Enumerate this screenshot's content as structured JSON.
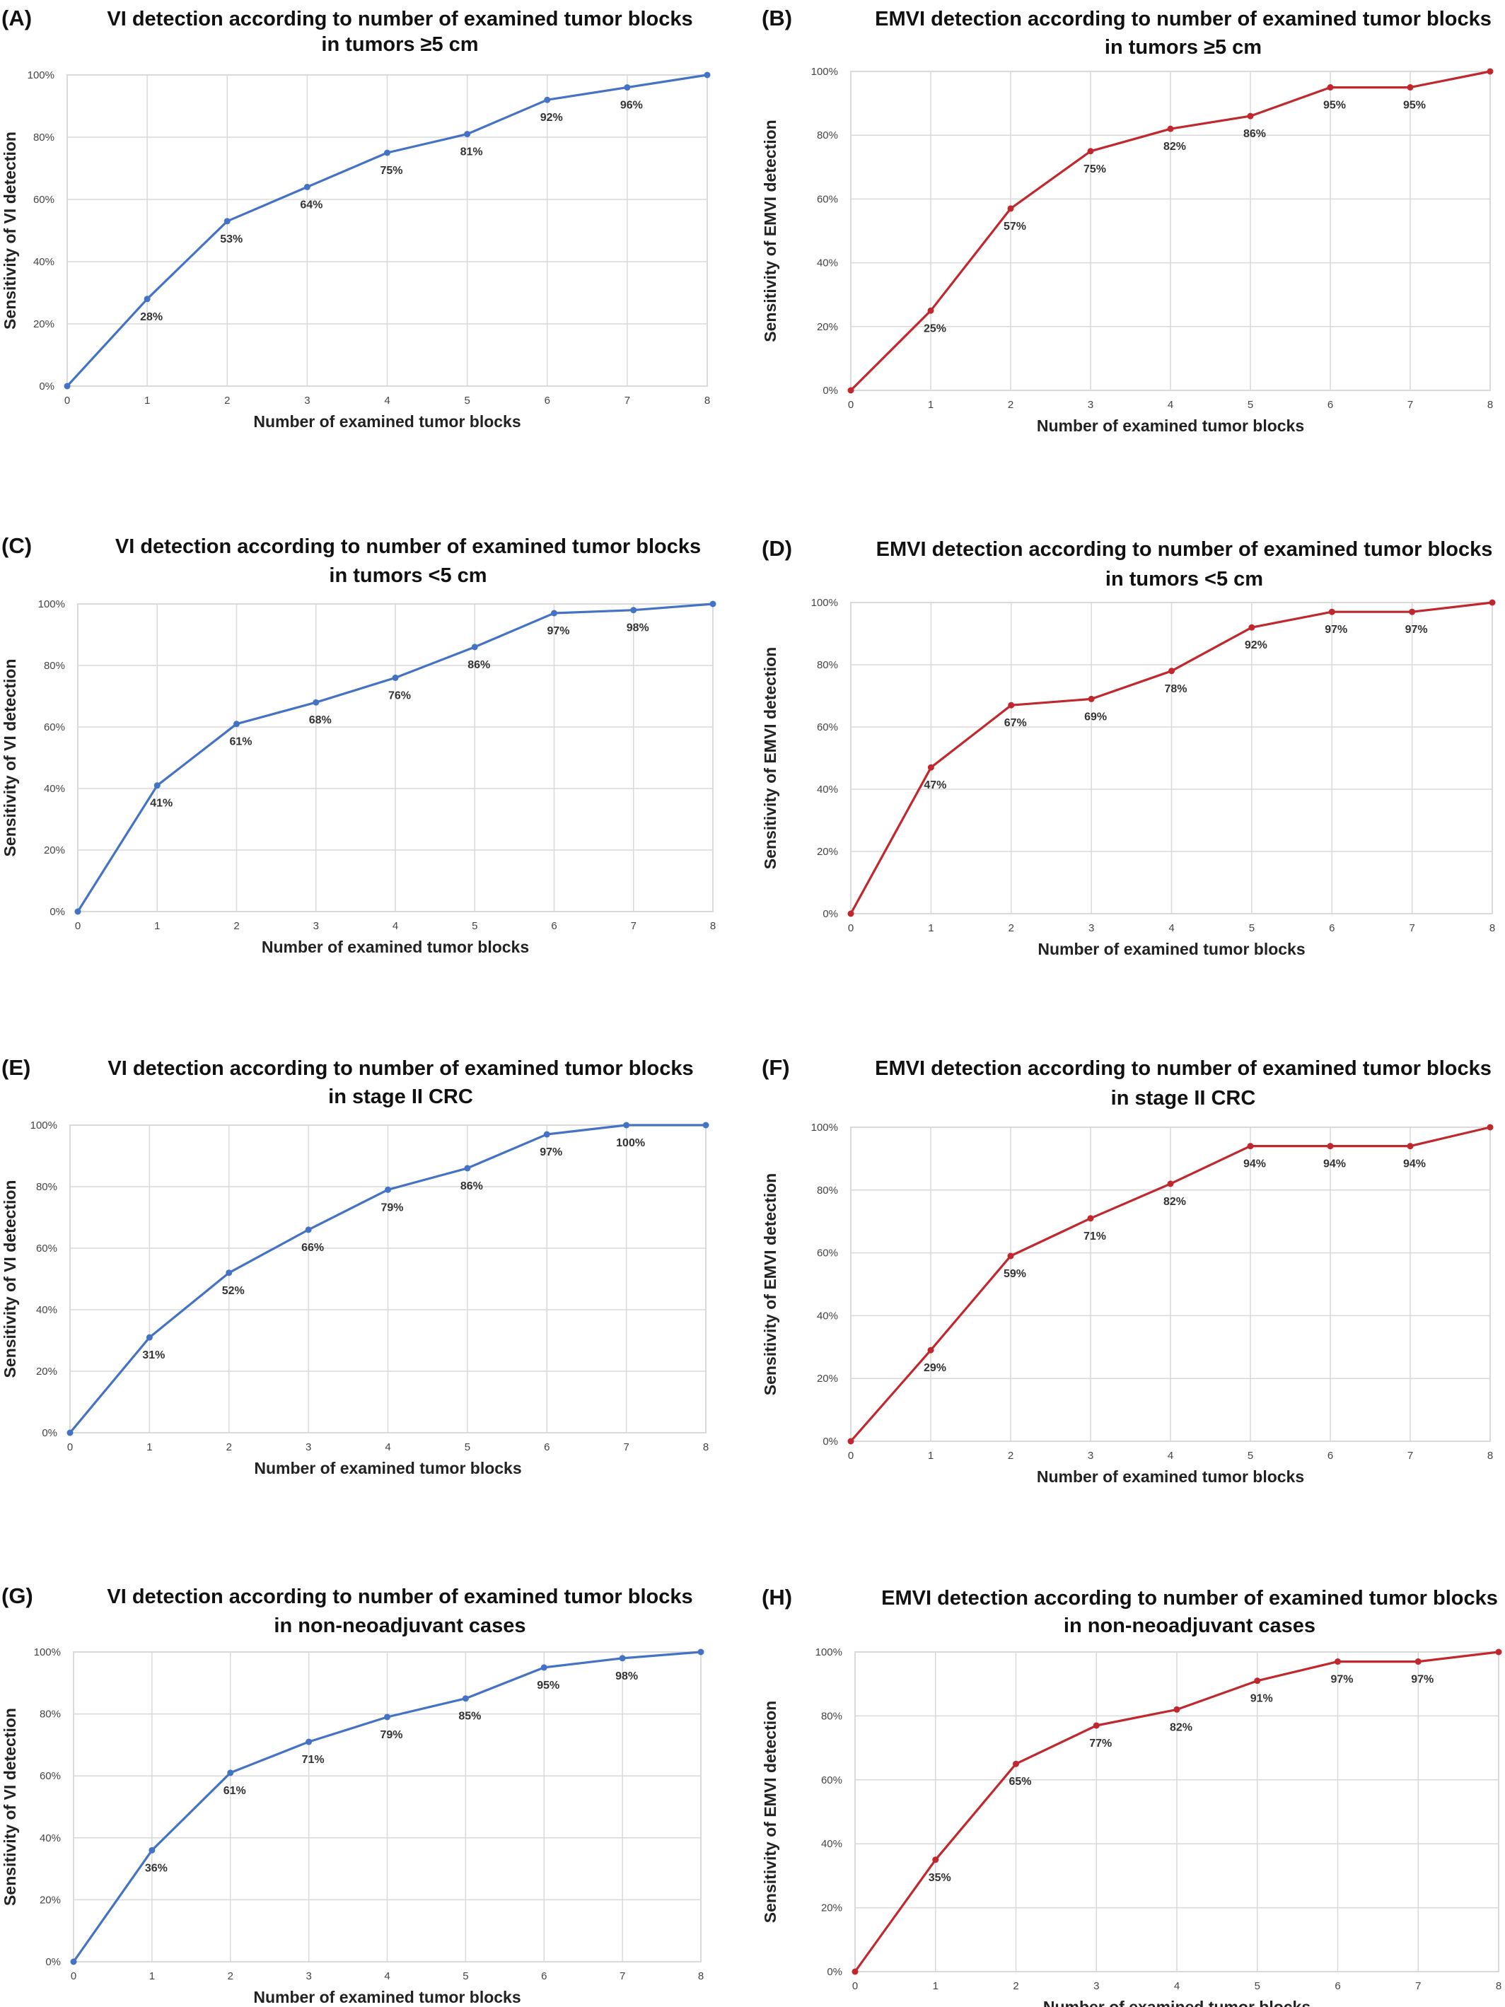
{
  "colors": {
    "blue_series": "#4472C4",
    "red_series": "#C0282D",
    "grid": "#D9D9D9",
    "text": "#111111"
  },
  "chart_data": [
    {
      "panel": "(A)",
      "type": "line",
      "title": "VI detection according to number of examined tumor blocks",
      "subtitle": "in tumors ≥5 cm",
      "xlabel": "Number of examined tumor blocks",
      "ylabel": "Sensitivity of VI detection",
      "x": [
        0,
        1,
        2,
        3,
        4,
        5,
        6,
        7,
        8
      ],
      "values": [
        0,
        28,
        53,
        64,
        75,
        81,
        92,
        96,
        100
      ],
      "data_labels": [
        "",
        "28%",
        "53%",
        "64%",
        "75%",
        "81%",
        "92%",
        "96%",
        ""
      ],
      "x_ticks": [
        "0",
        "1",
        "2",
        "3",
        "4",
        "5",
        "6",
        "7",
        "8"
      ],
      "y_ticks": [
        "0%",
        "20%",
        "40%",
        "60%",
        "80%",
        "100%"
      ],
      "ylim": [
        0,
        100
      ],
      "color": "#4472C4",
      "grid": true
    },
    {
      "panel": "(B)",
      "type": "line",
      "title": "EMVI detection according to number of examined tumor blocks",
      "subtitle": "in tumors ≥5 cm",
      "xlabel": "Number of examined tumor blocks",
      "ylabel": "Sensitivity of EMVI detection",
      "x": [
        0,
        1,
        2,
        3,
        4,
        5,
        6,
        7,
        8
      ],
      "values": [
        0,
        25,
        57,
        75,
        82,
        86,
        95,
        95,
        100
      ],
      "data_labels": [
        "",
        "25%",
        "57%",
        "75%",
        "82%",
        "86%",
        "95%",
        "95%",
        ""
      ],
      "x_ticks": [
        "0",
        "1",
        "2",
        "3",
        "4",
        "5",
        "6",
        "7",
        "8"
      ],
      "y_ticks": [
        "0%",
        "20%",
        "40%",
        "60%",
        "80%",
        "100%"
      ],
      "ylim": [
        0,
        100
      ],
      "color": "#C0282D",
      "grid": true
    },
    {
      "panel": "(C)",
      "type": "line",
      "title": "VI detection according to number of examined tumor blocks",
      "subtitle": "in tumors <5 cm",
      "xlabel": "Number of examined tumor blocks",
      "ylabel": "Sensitivity of VI detection",
      "x": [
        0,
        1,
        2,
        3,
        4,
        5,
        6,
        7,
        8
      ],
      "values": [
        0,
        41,
        61,
        68,
        76,
        86,
        97,
        98,
        100
      ],
      "data_labels": [
        "",
        "41%",
        "61%",
        "68%",
        "76%",
        "86%",
        "97%",
        "98%",
        ""
      ],
      "x_ticks": [
        "0",
        "1",
        "2",
        "3",
        "4",
        "5",
        "6",
        "7",
        "8"
      ],
      "y_ticks": [
        "0%",
        "20%",
        "40%",
        "60%",
        "80%",
        "100%"
      ],
      "ylim": [
        0,
        100
      ],
      "color": "#4472C4",
      "grid": true
    },
    {
      "panel": "(D)",
      "type": "line",
      "title": "EMVI detection according to number of examined tumor blocks",
      "subtitle": "in tumors <5 cm",
      "xlabel": "Number of examined tumor blocks",
      "ylabel": "Sensitivity of EMVI detection",
      "x": [
        0,
        1,
        2,
        3,
        4,
        5,
        6,
        7,
        8
      ],
      "values": [
        0,
        47,
        67,
        69,
        78,
        92,
        97,
        97,
        100
      ],
      "data_labels": [
        "",
        "47%",
        "67%",
        "69%",
        "78%",
        "92%",
        "97%",
        "97%",
        ""
      ],
      "x_ticks": [
        "0",
        "1",
        "2",
        "3",
        "4",
        "5",
        "6",
        "7",
        "8"
      ],
      "y_ticks": [
        "0%",
        "20%",
        "40%",
        "60%",
        "80%",
        "100%"
      ],
      "ylim": [
        0,
        100
      ],
      "color": "#C0282D",
      "grid": true
    },
    {
      "panel": "(E)",
      "type": "line",
      "title": "VI detection according to number of examined tumor blocks",
      "subtitle": "in stage II CRC",
      "xlabel": "Number of examined tumor blocks",
      "ylabel": "Sensitivity of VI detection",
      "x": [
        0,
        1,
        2,
        3,
        4,
        5,
        6,
        7,
        8
      ],
      "values": [
        0,
        31,
        52,
        66,
        79,
        86,
        97,
        100,
        100
      ],
      "data_labels": [
        "",
        "31%",
        "52%",
        "66%",
        "79%",
        "86%",
        "97%",
        "100%",
        ""
      ],
      "x_ticks": [
        "0",
        "1",
        "2",
        "3",
        "4",
        "5",
        "6",
        "7",
        "8"
      ],
      "y_ticks": [
        "0%",
        "20%",
        "40%",
        "60%",
        "80%",
        "100%"
      ],
      "ylim": [
        0,
        100
      ],
      "color": "#4472C4",
      "grid": true
    },
    {
      "panel": "(F)",
      "type": "line",
      "title": "EMVI detection according to number of examined tumor blocks",
      "subtitle": "in stage II CRC",
      "xlabel": "Number of examined tumor blocks",
      "ylabel": "Sensitivity of EMVI detection",
      "x": [
        0,
        1,
        2,
        3,
        4,
        5,
        6,
        7,
        8
      ],
      "values": [
        0,
        29,
        59,
        71,
        82,
        94,
        94,
        94,
        100
      ],
      "data_labels": [
        "",
        "29%",
        "59%",
        "71%",
        "82%",
        "94%",
        "94%",
        "94%",
        ""
      ],
      "x_ticks": [
        "0",
        "1",
        "2",
        "3",
        "4",
        "5",
        "6",
        "7",
        "8"
      ],
      "y_ticks": [
        "0%",
        "20%",
        "40%",
        "60%",
        "80%",
        "100%"
      ],
      "ylim": [
        0,
        100
      ],
      "color": "#C0282D",
      "grid": true
    },
    {
      "panel": "(G)",
      "type": "line",
      "title": "VI detection according to number of examined tumor blocks",
      "subtitle": "in non-neoadjuvant cases",
      "xlabel": "Number of examined tumor blocks",
      "ylabel": "Sensitivity of VI detection",
      "x": [
        0,
        1,
        2,
        3,
        4,
        5,
        6,
        7,
        8
      ],
      "values": [
        0,
        36,
        61,
        71,
        79,
        85,
        95,
        98,
        100
      ],
      "data_labels": [
        "",
        "36%",
        "61%",
        "71%",
        "79%",
        "85%",
        "95%",
        "98%",
        ""
      ],
      "x_ticks": [
        "0",
        "1",
        "2",
        "3",
        "4",
        "5",
        "6",
        "7",
        "8"
      ],
      "y_ticks": [
        "0%",
        "20%",
        "40%",
        "60%",
        "80%",
        "100%"
      ],
      "ylim": [
        0,
        100
      ],
      "color": "#4472C4",
      "grid": true
    },
    {
      "panel": "(H)",
      "type": "line",
      "title": "EMVI detection according to number of examined tumor blocks",
      "subtitle": "in non-neoadjuvant cases",
      "xlabel": "Number of examined tumor blocks",
      "ylabel": "Sensitivity of EMVI detection",
      "x": [
        0,
        1,
        2,
        3,
        4,
        5,
        6,
        7,
        8
      ],
      "values": [
        0,
        35,
        65,
        77,
        82,
        91,
        97,
        97,
        100
      ],
      "data_labels": [
        "",
        "35%",
        "65%",
        "77%",
        "82%",
        "91%",
        "97%",
        "97%",
        ""
      ],
      "x_ticks": [
        "0",
        "1",
        "2",
        "3",
        "4",
        "5",
        "6",
        "7",
        "8"
      ],
      "y_ticks": [
        "0%",
        "20%",
        "40%",
        "60%",
        "80%",
        "100%"
      ],
      "ylim": [
        0,
        100
      ],
      "color": "#C0282D",
      "grid": true
    }
  ]
}
